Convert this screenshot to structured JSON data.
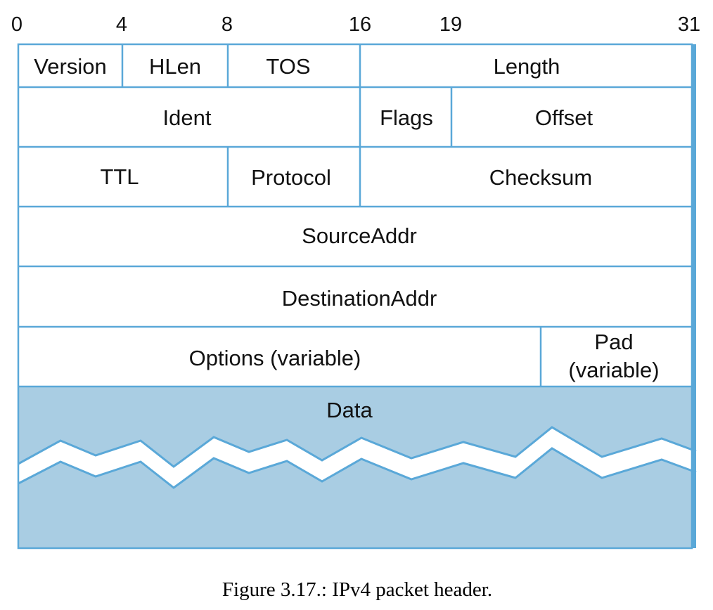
{
  "colors": {
    "line": "#5aa8d8",
    "data_fill": "#a9cde3",
    "background": "#ffffff",
    "text": "#111111"
  },
  "bit_labels": [
    "0",
    "4",
    "8",
    "16",
    "19",
    "31"
  ],
  "fields": {
    "version": "Version",
    "hlen": "HLen",
    "tos": "TOS",
    "length": "Length",
    "ident": "Ident",
    "flags": "Flags",
    "offset": "Offset",
    "ttl": "TTL",
    "protocol": "Protocol",
    "checksum": "Checksum",
    "source_addr": "SourceAddr",
    "destination_addr": "DestinationAddr",
    "options": "Options (variable)",
    "pad_line1": "Pad",
    "pad_line2": "(variable)",
    "data": "Data"
  },
  "caption": "Figure 3.17.: IPv4 packet header."
}
